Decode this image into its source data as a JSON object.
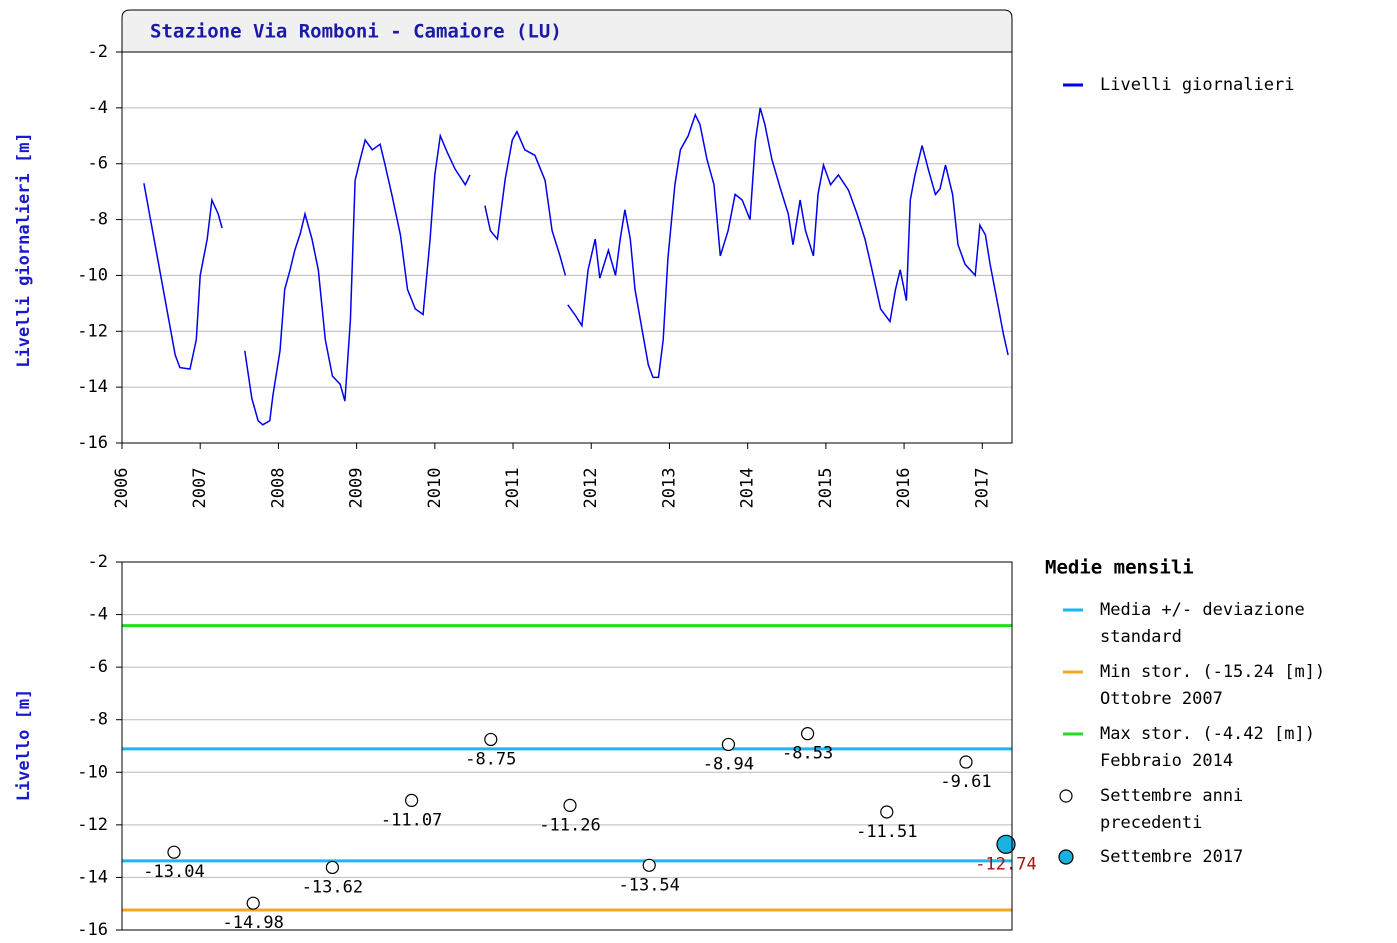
{
  "chart_data": [
    {
      "type": "line",
      "title": "Stazione Via Romboni - Camaiore (LU)",
      "ylabel": "Livelli giornalieri [m]",
      "xlim": [
        2006,
        2017.38
      ],
      "xticks": [
        2006,
        2007,
        2008,
        2009,
        2010,
        2011,
        2012,
        2013,
        2014,
        2015,
        2016,
        2017
      ],
      "ylim": [
        -16,
        -2
      ],
      "yticks": [
        -2,
        -4,
        -6,
        -8,
        -10,
        -12,
        -14,
        -16
      ],
      "grid": true,
      "x": [
        2006.28,
        2006.68,
        2006.74,
        2006.87,
        2006.95,
        2007.0,
        2007.09,
        2007.15,
        2007.23,
        2007.28,
        2007.4,
        2007.57,
        2007.66,
        2007.74,
        2007.8,
        2007.89,
        2007.93,
        2008.02,
        2008.08,
        2008.15,
        2008.21,
        2008.28,
        2008.34,
        2008.43,
        2008.51,
        2008.6,
        2008.69,
        2008.79,
        2008.85,
        2008.92,
        2008.98,
        2009.04,
        2009.11,
        2009.2,
        2009.3,
        2009.36,
        2009.45,
        2009.56,
        2009.65,
        2009.75,
        2009.85,
        2009.94,
        2010.0,
        2010.07,
        2010.16,
        2010.26,
        2010.39,
        2010.45,
        2010.5,
        2010.64,
        2010.71,
        2010.8,
        2010.9,
        2010.99,
        2011.05,
        2011.15,
        2011.28,
        2011.41,
        2011.5,
        2011.6,
        2011.67,
        2011.69,
        2011.7,
        2011.79,
        2011.88,
        2011.96,
        2012.05,
        2012.11,
        2012.22,
        2012.31,
        2012.37,
        2012.43,
        2012.5,
        2012.56,
        2012.65,
        2012.73,
        2012.79,
        2012.86,
        2012.92,
        2012.98,
        2013.07,
        2013.14,
        2013.24,
        2013.33,
        2013.39,
        2013.48,
        2013.57,
        2013.65,
        2013.75,
        2013.84,
        2013.93,
        2014.03,
        2014.1,
        2014.16,
        2014.22,
        2014.31,
        2014.42,
        2014.52,
        2014.58,
        2014.67,
        2014.74,
        2014.84,
        2014.9,
        2014.97,
        2015.06,
        2015.16,
        2015.29,
        2015.4,
        2015.5,
        2015.59,
        2015.7,
        2015.82,
        2015.89,
        2015.95,
        2016.03,
        2016.08,
        2016.14,
        2016.23,
        2016.31,
        2016.4,
        2016.46,
        2016.53,
        2016.62,
        2016.69,
        2016.78,
        2016.91,
        2016.97,
        2017.04,
        2017.1,
        2017.19,
        2017.27,
        2017.33
      ],
      "series": [
        {
          "name": "Livelli giornalieri",
          "color": "#0000ee",
          "values": [
            -6.7,
            -12.85,
            -13.3,
            -13.35,
            -12.3,
            -10,
            -8.7,
            -7.3,
            -7.8,
            -8.3,
            null,
            -12.7,
            -14.4,
            -15.2,
            -15.35,
            -15.2,
            -14.3,
            -12.7,
            -10.5,
            -9.8,
            -9.1,
            -8.5,
            -7.8,
            -8.7,
            -9.8,
            -12.3,
            -13.6,
            -13.9,
            -14.5,
            -11.6,
            -6.6,
            -5.9,
            -5.15,
            -5.5,
            -5.3,
            -6.0,
            -7.1,
            -8.55,
            -10.5,
            -11.2,
            -11.4,
            -8.7,
            -6.4,
            -5.0,
            -5.6,
            -6.2,
            -6.75,
            -6.4,
            null,
            -7.5,
            -8.4,
            -8.7,
            -6.55,
            -5.15,
            -4.85,
            -5.5,
            -5.7,
            -6.6,
            -8.4,
            -9.3,
            -10,
            null,
            -11.05,
            -11.4,
            -11.8,
            -9.8,
            -8.7,
            -10.1,
            -9.1,
            -10,
            -8.7,
            -7.65,
            -8.7,
            -10.5,
            -11.95,
            -13.2,
            -13.65,
            -13.65,
            -12.3,
            -9.4,
            -6.75,
            -5.5,
            -5.0,
            -4.25,
            -4.6,
            -5.85,
            -6.75,
            -9.3,
            -8.4,
            -7.1,
            -7.3,
            -8.0,
            -5.15,
            -4.0,
            -4.6,
            -5.85,
            -6.9,
            -7.8,
            -8.9,
            -7.3,
            -8.4,
            -9.3,
            -7.1,
            -6.05,
            -6.75,
            -6.4,
            -6.95,
            -7.8,
            -8.7,
            -9.8,
            -11.2,
            -11.65,
            -10.5,
            -9.8,
            -10.9,
            -7.3,
            -6.4,
            -5.35,
            -6.2,
            -7.1,
            -6.9,
            -6.05,
            -7.1,
            -8.9,
            -9.6,
            -10,
            -8.2,
            -8.55,
            -9.6,
            -10.9,
            -12.1,
            -12.85
          ]
        }
      ]
    },
    {
      "type": "scatter",
      "ylabel": "Livello [m]",
      "ylim": [
        -16,
        -2
      ],
      "yticks": [
        -2,
        -4,
        -6,
        -8,
        -10,
        -12,
        -14,
        -16
      ],
      "grid": true,
      "legend_title": "Medie mensili",
      "lines": [
        {
          "name": [
            "Media +/- deviazione",
            "standard"
          ],
          "color": "#1ab8f0",
          "values": [
            -9.11,
            -13.37
          ]
        },
        {
          "name": [
            "Min stor. (-15.24 [m])",
            "Ottobre 2007"
          ],
          "color": "#f5a623",
          "values": [
            -15.24
          ]
        },
        {
          "name": [
            "Max stor. (-4.42 [m])",
            "Febbraio 2014"
          ],
          "color": "#22dd22",
          "values": [
            -4.42
          ]
        }
      ],
      "series": [
        {
          "name": [
            "Settembre anni",
            "precedenti"
          ],
          "color": "#ffffff",
          "values": [
            -13.04,
            -14.98,
            -13.62,
            -11.07,
            -8.75,
            -11.26,
            -13.54,
            -8.94,
            -8.53,
            -11.51,
            -9.61
          ]
        },
        {
          "name": [
            "Settembre 2017"
          ],
          "color": "#1ab0e0",
          "label_color": "#aa1111",
          "values": [
            -12.74
          ]
        }
      ]
    }
  ]
}
